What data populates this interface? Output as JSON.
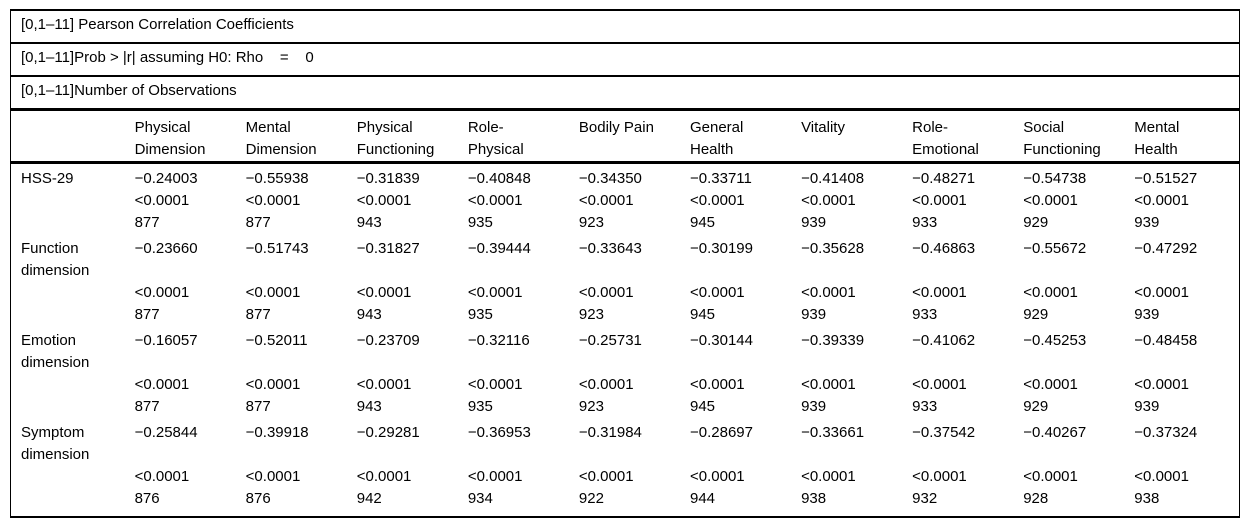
{
  "page": {
    "background_color": "#ffffff",
    "text_color": "#000000",
    "border_color": "#000000"
  },
  "table": {
    "title_rows": [
      "[0,1–11] Pearson Correlation Coefficients",
      "[0,1–11]Prob > |r| assuming H0: Rho    =    0",
      "[0,1–11]Number of Observations"
    ],
    "columns": [
      [
        "Physical",
        "Dimension"
      ],
      [
        "Mental",
        "Dimension"
      ],
      [
        "Physical",
        "Functioning"
      ],
      [
        "Role-",
        "Physical"
      ],
      [
        "Bodily Pain",
        ""
      ],
      [
        "General",
        "Health"
      ],
      [
        "Vitality",
        ""
      ],
      [
        "Role-",
        "Emotional"
      ],
      [
        "Social",
        "Functioning"
      ],
      [
        "Mental",
        "Health"
      ]
    ],
    "rows": [
      {
        "label_lines": [
          "HSS-29"
        ],
        "cells": [
          {
            "r": "−0.24003",
            "p": "<0.0001",
            "n": "877"
          },
          {
            "r": "−0.55938",
            "p": "<0.0001",
            "n": "877"
          },
          {
            "r": "−0.31839",
            "p": "<0.0001",
            "n": "943"
          },
          {
            "r": "−0.40848",
            "p": "<0.0001",
            "n": "935"
          },
          {
            "r": "−0.34350",
            "p": "<0.0001",
            "n": "923"
          },
          {
            "r": "−0.33711",
            "p": "<0.0001",
            "n": "945"
          },
          {
            "r": "−0.41408",
            "p": "<0.0001",
            "n": "939"
          },
          {
            "r": "−0.48271",
            "p": "<0.0001",
            "n": "933"
          },
          {
            "r": "−0.54738",
            "p": "<0.0001",
            "n": "929"
          },
          {
            "r": "−0.51527",
            "p": "<0.0001",
            "n": "939"
          }
        ]
      },
      {
        "label_lines": [
          "Function",
          "dimension"
        ],
        "cells": [
          {
            "r": "−0.23660",
            "p": "<0.0001",
            "n": "877"
          },
          {
            "r": "−0.51743",
            "p": "<0.0001",
            "n": "877"
          },
          {
            "r": "−0.31827",
            "p": "<0.0001",
            "n": "943"
          },
          {
            "r": "−0.39444",
            "p": "<0.0001",
            "n": "935"
          },
          {
            "r": "−0.33643",
            "p": "<0.0001",
            "n": "923"
          },
          {
            "r": "−0.30199",
            "p": "<0.0001",
            "n": "945"
          },
          {
            "r": "−0.35628",
            "p": "<0.0001",
            "n": "939"
          },
          {
            "r": "−0.46863",
            "p": "<0.0001",
            "n": "933"
          },
          {
            "r": "−0.55672",
            "p": "<0.0001",
            "n": "929"
          },
          {
            "r": "−0.47292",
            "p": "<0.0001",
            "n": "939"
          }
        ]
      },
      {
        "label_lines": [
          "Emotion",
          "dimension"
        ],
        "cells": [
          {
            "r": "−0.16057",
            "p": "<0.0001",
            "n": "877"
          },
          {
            "r": "−0.52011",
            "p": "<0.0001",
            "n": "877"
          },
          {
            "r": "−0.23709",
            "p": "<0.0001",
            "n": "943"
          },
          {
            "r": "−0.32116",
            "p": "<0.0001",
            "n": "935"
          },
          {
            "r": "−0.25731",
            "p": "<0.0001",
            "n": "923"
          },
          {
            "r": "−0.30144",
            "p": "<0.0001",
            "n": "945"
          },
          {
            "r": "−0.39339",
            "p": "<0.0001",
            "n": "939"
          },
          {
            "r": "−0.41062",
            "p": "<0.0001",
            "n": "933"
          },
          {
            "r": "−0.45253",
            "p": "<0.0001",
            "n": "929"
          },
          {
            "r": "−0.48458",
            "p": "<0.0001",
            "n": "939"
          }
        ]
      },
      {
        "label_lines": [
          "Symptom",
          "dimension"
        ],
        "cells": [
          {
            "r": "−0.25844",
            "p": "<0.0001",
            "n": "876"
          },
          {
            "r": "−0.39918",
            "p": "<0.0001",
            "n": "876"
          },
          {
            "r": "−0.29281",
            "p": "<0.0001",
            "n": "942"
          },
          {
            "r": "−0.36953",
            "p": "<0.0001",
            "n": "934"
          },
          {
            "r": "−0.31984",
            "p": "<0.0001",
            "n": "922"
          },
          {
            "r": "−0.28697",
            "p": "<0.0001",
            "n": "944"
          },
          {
            "r": "−0.33661",
            "p": "<0.0001",
            "n": "938"
          },
          {
            "r": "−0.37542",
            "p": "<0.0001",
            "n": "932"
          },
          {
            "r": "−0.40267",
            "p": "<0.0001",
            "n": "928"
          },
          {
            "r": "−0.37324",
            "p": "<0.0001",
            "n": "938"
          }
        ]
      }
    ]
  }
}
